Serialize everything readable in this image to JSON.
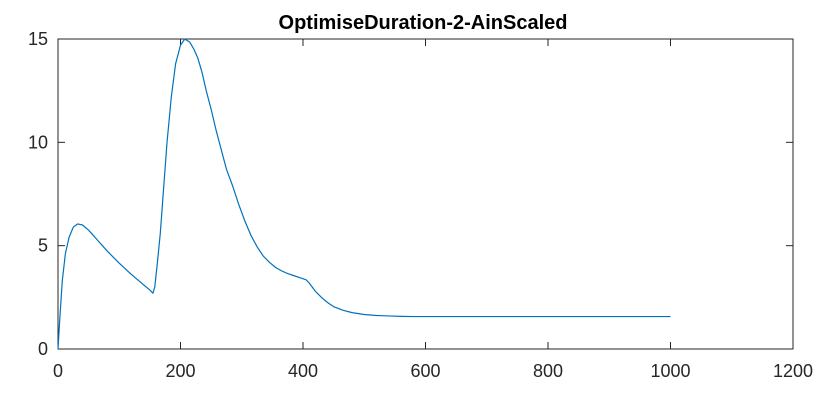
{
  "chart_data": {
    "type": "line",
    "title": "OptimiseDuration-2-AinScaled",
    "xlabel": "",
    "ylabel": "",
    "xlim": [
      0,
      1200
    ],
    "ylim": [
      0,
      15
    ],
    "x_ticks": [
      0,
      200,
      400,
      600,
      800,
      1000,
      1200
    ],
    "y_ticks": [
      0,
      5,
      10,
      15
    ],
    "x_tick_labels": [
      "0",
      "200",
      "400",
      "600",
      "800",
      "1000",
      "1200"
    ],
    "y_tick_labels": [
      "0",
      "5",
      "10",
      "15"
    ],
    "grid": false,
    "legend": "none",
    "series": [
      {
        "color": "#0072BD",
        "x": [
          0,
          3,
          7,
          12,
          18,
          25,
          32,
          40,
          50,
          65,
          80,
          100,
          120,
          140,
          150,
          155,
          158,
          162,
          167,
          172,
          178,
          185,
          192,
          200,
          207,
          215,
          222,
          228,
          235,
          242,
          250,
          258,
          266,
          275,
          285,
          295,
          305,
          315,
          325,
          335,
          345,
          355,
          365,
          375,
          385,
          395,
          405,
          410,
          415,
          420,
          430,
          440,
          450,
          465,
          480,
          500,
          520,
          540,
          560,
          580,
          600,
          650,
          700,
          750,
          800,
          850,
          900,
          950,
          1000
        ],
        "y": [
          0,
          1.5,
          3.3,
          4.6,
          5.4,
          5.9,
          6.05,
          6.0,
          5.75,
          5.25,
          4.75,
          4.15,
          3.6,
          3.1,
          2.85,
          2.7,
          3.0,
          4.1,
          5.6,
          7.6,
          10.0,
          12.2,
          13.8,
          14.7,
          15.0,
          14.85,
          14.5,
          14.1,
          13.4,
          12.5,
          11.6,
          10.6,
          9.7,
          8.7,
          7.9,
          7.0,
          6.2,
          5.5,
          4.95,
          4.5,
          4.2,
          3.95,
          3.78,
          3.65,
          3.55,
          3.45,
          3.35,
          3.2,
          3.0,
          2.8,
          2.5,
          2.25,
          2.05,
          1.88,
          1.76,
          1.67,
          1.62,
          1.6,
          1.58,
          1.57,
          1.57,
          1.57,
          1.57,
          1.57,
          1.57,
          1.57,
          1.57,
          1.57,
          1.57
        ]
      }
    ]
  }
}
